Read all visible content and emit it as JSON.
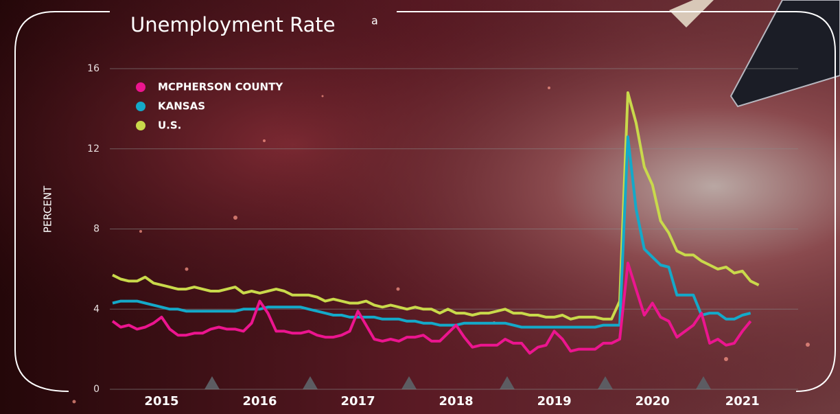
{
  "chart_data": {
    "type": "line",
    "title": "Unemployment Rate",
    "title_note": "a",
    "y_label": "PERCENT",
    "categories": [
      null,
      null,
      null,
      null,
      null,
      null,
      "2015",
      null,
      null,
      null,
      null,
      null,
      null,
      null,
      null,
      null,
      null,
      null,
      "2016",
      null,
      null,
      null,
      null,
      null,
      null,
      null,
      null,
      null,
      null,
      null,
      "2017",
      null,
      null,
      null,
      null,
      null,
      null,
      null,
      null,
      null,
      null,
      null,
      "2018",
      null,
      null,
      null,
      null,
      null,
      null,
      null,
      null,
      null,
      null,
      null,
      "2019",
      null,
      null,
      null,
      null,
      null,
      null,
      null,
      null,
      null,
      null,
      null,
      "2020",
      null,
      null,
      null,
      null,
      null,
      null,
      null,
      null,
      null,
      null,
      "2021",
      null,
      null
    ],
    "series": [
      {
        "name": "MCPHERSON COUNTY",
        "color": "#ec158f",
        "values": [
          3.4,
          3.1,
          3.2,
          3.0,
          3.1,
          3.3,
          3.6,
          3.0,
          2.7,
          2.7,
          2.8,
          2.8,
          3.0,
          3.1,
          3.0,
          3.0,
          2.9,
          3.3,
          4.4,
          3.8,
          2.9,
          2.9,
          2.8,
          2.8,
          2.9,
          2.7,
          2.6,
          2.6,
          2.7,
          2.9,
          3.9,
          3.2,
          2.5,
          2.4,
          2.5,
          2.4,
          2.6,
          2.6,
          2.7,
          2.4,
          2.4,
          2.8,
          3.2,
          2.6,
          2.1,
          2.2,
          2.2,
          2.2,
          2.5,
          2.3,
          2.3,
          1.8,
          2.1,
          2.2,
          2.9,
          2.5,
          1.9,
          2.0,
          2.0,
          2.0,
          2.3,
          2.3,
          2.5,
          6.3,
          5.0,
          3.7,
          4.3,
          3.6,
          3.4,
          2.6,
          2.9,
          3.2,
          3.8,
          2.3,
          2.5,
          2.2,
          2.3,
          2.9,
          3.4,
          null
        ]
      },
      {
        "name": "KANSAS",
        "color": "#14a9c9",
        "values": [
          4.3,
          4.4,
          4.4,
          4.4,
          4.3,
          4.2,
          4.1,
          4.0,
          4.0,
          3.9,
          3.9,
          3.9,
          3.9,
          3.9,
          3.9,
          3.9,
          4.0,
          4.0,
          4.0,
          4.1,
          4.1,
          4.1,
          4.1,
          4.1,
          4.0,
          3.9,
          3.8,
          3.7,
          3.7,
          3.6,
          3.6,
          3.6,
          3.6,
          3.5,
          3.5,
          3.5,
          3.4,
          3.4,
          3.3,
          3.3,
          3.2,
          3.2,
          3.2,
          3.3,
          3.3,
          3.3,
          3.3,
          3.3,
          3.3,
          3.2,
          3.1,
          3.1,
          3.1,
          3.1,
          3.1,
          3.1,
          3.1,
          3.1,
          3.1,
          3.1,
          3.2,
          3.2,
          3.2,
          12.6,
          9.0,
          7.0,
          6.6,
          6.2,
          6.1,
          4.7,
          4.7,
          4.7,
          3.7,
          3.8,
          3.8,
          3.5,
          3.5,
          3.7,
          3.8,
          null
        ]
      },
      {
        "name": "U.S.",
        "color": "#c9d94b",
        "values": [
          5.7,
          5.5,
          5.4,
          5.4,
          5.6,
          5.3,
          5.2,
          5.1,
          5.0,
          5.0,
          5.1,
          5.0,
          4.9,
          4.9,
          5.0,
          5.1,
          4.8,
          4.9,
          4.8,
          4.9,
          5.0,
          4.9,
          4.7,
          4.7,
          4.7,
          4.6,
          4.4,
          4.5,
          4.4,
          4.3,
          4.3,
          4.4,
          4.2,
          4.1,
          4.2,
          4.1,
          4.0,
          4.1,
          4.0,
          4.0,
          3.8,
          4.0,
          3.8,
          3.8,
          3.7,
          3.8,
          3.8,
          3.9,
          4.0,
          3.8,
          3.8,
          3.7,
          3.7,
          3.6,
          3.6,
          3.7,
          3.5,
          3.6,
          3.6,
          3.6,
          3.5,
          3.5,
          4.4,
          14.8,
          13.3,
          11.1,
          10.2,
          8.4,
          7.8,
          6.9,
          6.7,
          6.7,
          6.4,
          6.2,
          6.0,
          6.1,
          5.8,
          5.9,
          5.4,
          5.2
        ]
      }
    ],
    "ylim": [
      0,
      16
    ],
    "yticks": [
      0,
      4,
      8,
      12,
      16
    ],
    "grid": true,
    "legend": "upper left"
  }
}
